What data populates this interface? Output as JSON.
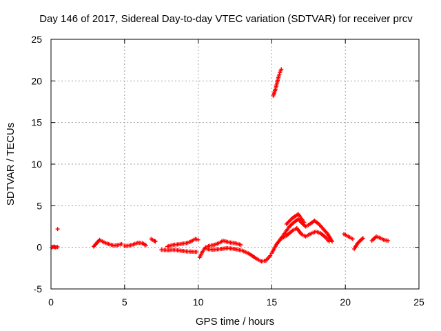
{
  "chart_data": {
    "type": "scatter",
    "title": "Day 146 of 2017, Sidereal Day-to-day VTEC variation (SDTVAR) for receiver prcv",
    "xlabel": "GPS time / hours",
    "ylabel": "SDTVAR / TECUs",
    "xlim": [
      0,
      25
    ],
    "ylim": [
      -5,
      25
    ],
    "xticks": [
      "0",
      "5",
      "10",
      "15",
      "20",
      "25"
    ],
    "yticks": [
      "-5",
      "0",
      "5",
      "10",
      "15",
      "20",
      "25"
    ],
    "grid": true,
    "marker": "+",
    "color": "#ff0000",
    "segments": [
      {
        "name": "s1",
        "points": [
          [
            0.05,
            0.0
          ],
          [
            0.2,
            0.1
          ],
          [
            0.3,
            0.0
          ],
          [
            0.45,
            0.05
          ]
        ]
      },
      {
        "name": "s2",
        "points": [
          [
            0.45,
            2.2
          ]
        ]
      },
      {
        "name": "s3",
        "points": [
          [
            2.9,
            0.1
          ],
          [
            3.1,
            0.5
          ],
          [
            3.3,
            0.9
          ],
          [
            3.6,
            0.6
          ],
          [
            3.9,
            0.4
          ],
          [
            4.3,
            0.2
          ],
          [
            4.6,
            0.3
          ],
          [
            4.8,
            0.4
          ]
        ]
      },
      {
        "name": "s4",
        "points": [
          [
            5.0,
            0.15
          ],
          [
            5.3,
            0.2
          ],
          [
            5.6,
            0.35
          ],
          [
            5.9,
            0.55
          ],
          [
            6.2,
            0.5
          ],
          [
            6.45,
            0.25
          ]
        ]
      },
      {
        "name": "s5",
        "points": [
          [
            6.8,
            1.0
          ],
          [
            7.0,
            0.8
          ],
          [
            7.1,
            0.7
          ]
        ]
      },
      {
        "name": "s6",
        "points": [
          [
            7.5,
            -0.3
          ],
          [
            7.9,
            -0.35
          ],
          [
            8.3,
            -0.3
          ],
          [
            8.8,
            -0.4
          ],
          [
            9.3,
            -0.5
          ],
          [
            9.9,
            -0.55
          ]
        ]
      },
      {
        "name": "s7",
        "points": [
          [
            7.9,
            0.1
          ],
          [
            8.3,
            0.3
          ],
          [
            8.8,
            0.4
          ],
          [
            9.2,
            0.5
          ],
          [
            9.5,
            0.7
          ],
          [
            9.8,
            1.0
          ],
          [
            10.0,
            0.9
          ]
        ]
      },
      {
        "name": "s8",
        "points": [
          [
            10.1,
            -1.2
          ],
          [
            10.3,
            -0.5
          ],
          [
            10.5,
            0.0
          ],
          [
            10.8,
            0.2
          ],
          [
            11.1,
            0.3
          ],
          [
            11.4,
            0.5
          ],
          [
            11.7,
            0.8
          ],
          [
            12.1,
            0.6
          ],
          [
            12.5,
            0.5
          ],
          [
            12.9,
            0.3
          ]
        ]
      },
      {
        "name": "s9",
        "points": [
          [
            10.6,
            -0.2
          ],
          [
            11.0,
            -0.3
          ],
          [
            11.5,
            -0.2
          ],
          [
            12.0,
            -0.1
          ],
          [
            12.5,
            -0.2
          ],
          [
            13.0,
            -0.4
          ],
          [
            13.5,
            -0.8
          ],
          [
            13.9,
            -1.3
          ],
          [
            14.3,
            -1.7
          ],
          [
            14.6,
            -1.6
          ],
          [
            14.9,
            -1.0
          ]
        ]
      },
      {
        "name": "s10",
        "points": [
          [
            15.0,
            -0.7
          ],
          [
            15.3,
            0.3
          ],
          [
            15.6,
            1.0
          ],
          [
            15.8,
            1.5
          ],
          [
            16.0,
            2.0
          ],
          [
            16.2,
            2.5
          ],
          [
            16.5,
            3.0
          ],
          [
            16.8,
            3.4
          ],
          [
            17.0,
            3.0
          ],
          [
            17.3,
            2.5
          ],
          [
            17.6,
            2.8
          ],
          [
            17.9,
            3.2
          ],
          [
            18.2,
            2.8
          ],
          [
            18.5,
            2.2
          ],
          [
            18.8,
            1.6
          ],
          [
            19.1,
            0.7
          ]
        ]
      },
      {
        "name": "s11",
        "points": [
          [
            15.6,
            1.0
          ],
          [
            16.0,
            1.4
          ],
          [
            16.4,
            2.0
          ],
          [
            16.7,
            2.3
          ],
          [
            17.0,
            1.6
          ],
          [
            17.3,
            1.3
          ],
          [
            17.6,
            1.6
          ],
          [
            18.0,
            1.9
          ],
          [
            18.3,
            1.7
          ],
          [
            18.6,
            1.3
          ],
          [
            18.9,
            0.7
          ]
        ]
      },
      {
        "name": "s12",
        "points": [
          [
            16.0,
            2.8
          ],
          [
            16.4,
            3.5
          ],
          [
            16.8,
            4.0
          ],
          [
            17.0,
            3.5
          ],
          [
            17.2,
            3.0
          ]
        ]
      },
      {
        "name": "s13",
        "points": [
          [
            15.1,
            18.2
          ],
          [
            15.25,
            19.0
          ],
          [
            15.35,
            19.7
          ],
          [
            15.45,
            20.4
          ],
          [
            15.55,
            21.0
          ],
          [
            15.65,
            21.4
          ]
        ]
      },
      {
        "name": "s14",
        "points": [
          [
            19.9,
            1.6
          ],
          [
            20.2,
            1.3
          ],
          [
            20.5,
            1.0
          ]
        ]
      },
      {
        "name": "s15",
        "points": [
          [
            20.6,
            -0.2
          ],
          [
            20.8,
            0.4
          ],
          [
            21.0,
            0.8
          ],
          [
            21.2,
            1.1
          ]
        ]
      },
      {
        "name": "s16",
        "points": [
          [
            21.8,
            0.8
          ],
          [
            22.1,
            1.3
          ],
          [
            22.4,
            1.1
          ],
          [
            22.6,
            0.9
          ],
          [
            22.9,
            0.8
          ]
        ]
      }
    ]
  }
}
